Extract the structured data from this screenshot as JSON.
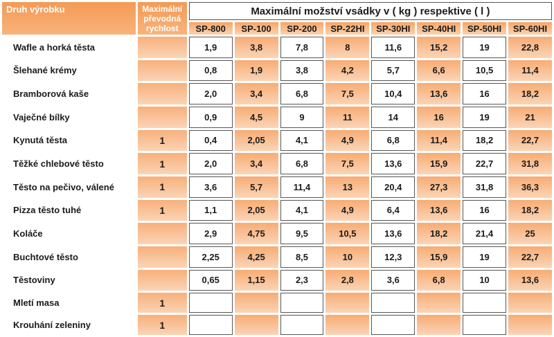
{
  "header": {
    "col_product": "Druh výrobku",
    "col_speed": "Maximální převodná rychlost",
    "capacity_title": "Maximální možství vsádky v ( kg ) respektive ( l )",
    "models": [
      "SP-800",
      "SP-100",
      "SP-200",
      "SP-22HI",
      "SP-30HI",
      "SP-40HI",
      "SP-50HI",
      "SP-60HI"
    ]
  },
  "rows": [
    {
      "name": "Wafle a horká těsta",
      "speed": "",
      "values": [
        "1,9",
        "3,8",
        "7,8",
        "8",
        "11,6",
        "15,2",
        "19",
        "22,8"
      ]
    },
    {
      "name": "Šlehané krémy",
      "speed": "",
      "values": [
        "0,8",
        "1,9",
        "3,8",
        "4,2",
        "5,7",
        "6,6",
        "10,5",
        "11,4"
      ]
    },
    {
      "name": "Bramborová kaše",
      "speed": "",
      "values": [
        "2,0",
        "3,4",
        "6,8",
        "7,5",
        "10,4",
        "13,6",
        "16",
        "18,2"
      ]
    },
    {
      "name": "Vaječné bílky",
      "speed": "",
      "values": [
        "0,9",
        "4,5",
        "9",
        "11",
        "14",
        "16",
        "19",
        "21"
      ]
    },
    {
      "name": "Kynutá těsta",
      "speed": "1",
      "values": [
        "0,4",
        "2,05",
        "4,1",
        "4,9",
        "6,8",
        "11,4",
        "18,2",
        "22,7"
      ]
    },
    {
      "name": "Těžké chlebové těsto",
      "speed": "1",
      "values": [
        "2,0",
        "3,4",
        "6,8",
        "7,5",
        "13,6",
        "15,9",
        "22,7",
        "31,8"
      ]
    },
    {
      "name": "Těsto na pečivo, válené",
      "speed": "1",
      "values": [
        "3,6",
        "5,7",
        "11,4",
        "13",
        "20,4",
        "27,3",
        "31,8",
        "36,3"
      ]
    },
    {
      "name": "Pizza těsto tuhé",
      "speed": "1",
      "values": [
        "1,1",
        "2,05",
        "4,1",
        "4,9",
        "6,4",
        "13,6",
        "16",
        "18,2"
      ]
    },
    {
      "name": "Koláče",
      "speed": "",
      "values": [
        "2,9",
        "4,75",
        "9,5",
        "10,5",
        "13,6",
        "18,2",
        "21,4",
        "25"
      ]
    },
    {
      "name": "Buchtové těsto",
      "speed": "",
      "values": [
        "2,25",
        "4,25",
        "8,5",
        "10",
        "12,3",
        "15,9",
        "19",
        "22,7"
      ]
    },
    {
      "name": "Těstoviny",
      "speed": "",
      "values": [
        "0,65",
        "1,15",
        "2,3",
        "2,8",
        "3,6",
        "6,8",
        "10",
        "13,6"
      ]
    },
    {
      "name": "Mletí masa",
      "speed": "1",
      "values": [
        "",
        "",
        "",
        "",
        "",
        "",
        "",
        ""
      ]
    },
    {
      "name": "Krouhání zeleniny",
      "speed": "1",
      "values": [
        "",
        "",
        "",
        "",
        "",
        "",
        "",
        ""
      ]
    }
  ]
}
